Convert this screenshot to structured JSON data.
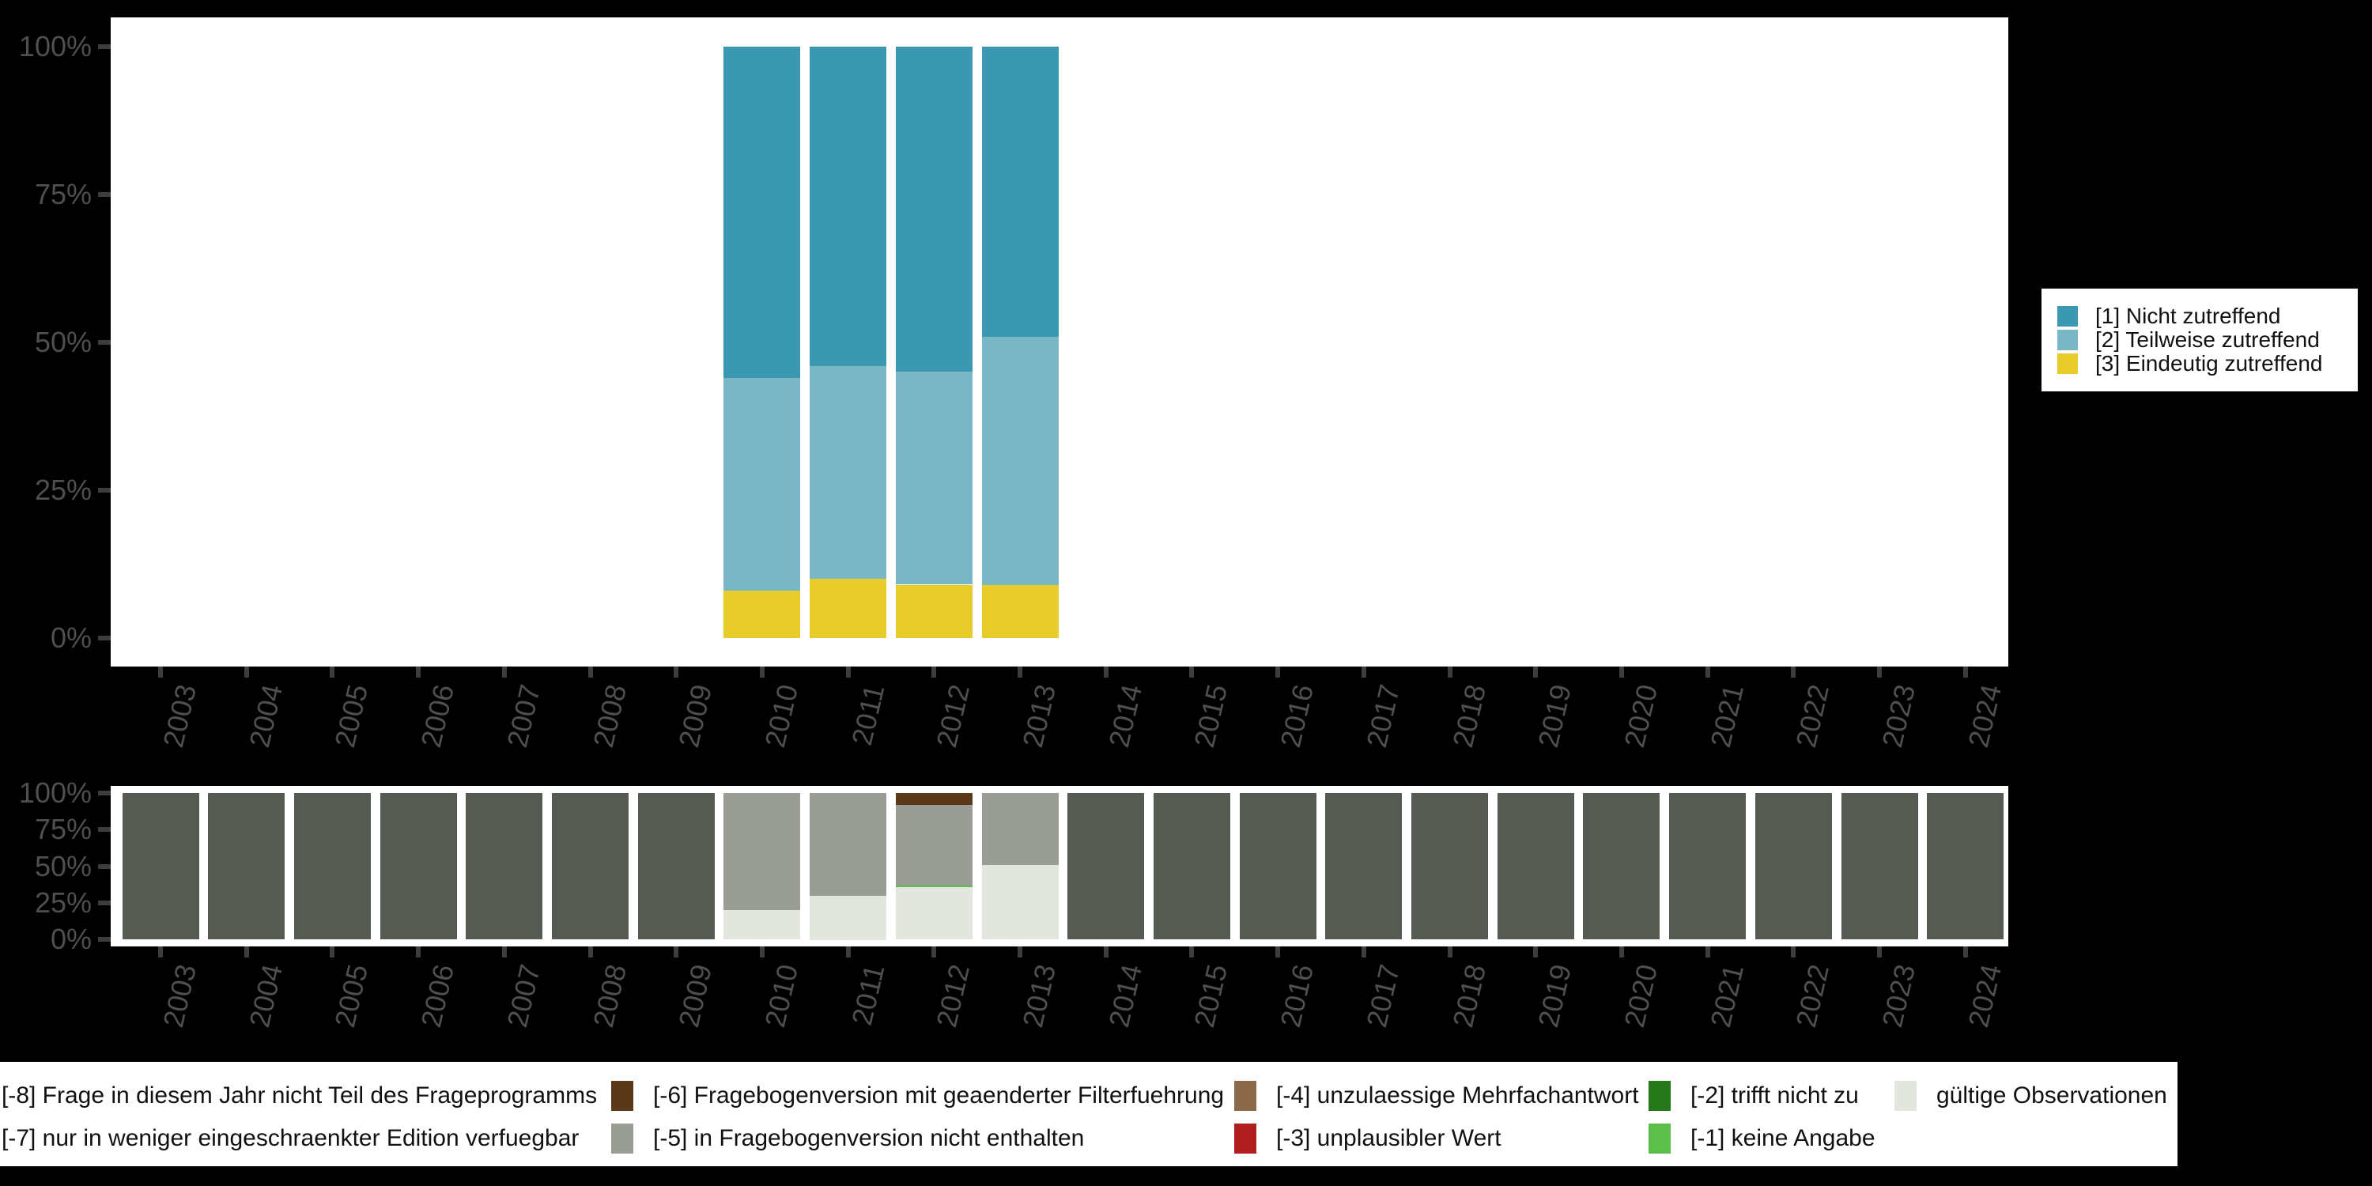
{
  "colors": {
    "background": "#000000",
    "panel": "#ffffff",
    "axis_text": "#4f4f4f",
    "axis_tick": "#3d3d3d",
    "legend_text": "#111111"
  },
  "years": [
    "2003",
    "2004",
    "2005",
    "2006",
    "2007",
    "2008",
    "2009",
    "2010",
    "2011",
    "2012",
    "2013",
    "2014",
    "2015",
    "2016",
    "2017",
    "2018",
    "2019",
    "2020",
    "2021",
    "2022",
    "2023",
    "2024"
  ],
  "y_axis_tick_labels": [
    "100%",
    "75%",
    "50%",
    "25%",
    "0%"
  ],
  "top_legend": {
    "items": [
      {
        "label": "[1] Nicht zutreffend",
        "color": "#3a99b0"
      },
      {
        "label": "[2] Teilweise zutreffend",
        "color": "#79b6c6"
      },
      {
        "label": "[3] Eindeutig zutreffend",
        "color": "#e8cc2b"
      }
    ]
  },
  "bottom_legend": {
    "rows": [
      [
        {
          "label": "[-8] Frage in diesem Jahr nicht Teil des Frageprogramms",
          "color": "#555b53",
          "swatch_clipped": true
        },
        {
          "label": "[-6] Fragebogenversion mit geaenderter Filterfuehrung",
          "color": "#5a3919",
          "swatch_clipped": false
        },
        {
          "label": "[-4] unzulaessige Mehrfachantwort",
          "color": "#8a6a4a",
          "swatch_clipped": false
        },
        {
          "label": "[-2] trifft nicht zu",
          "color": "#26791b",
          "swatch_clipped": false
        },
        {
          "label": "gültige Observationen",
          "color": "#e2e6df",
          "swatch_clipped": false
        }
      ],
      [
        {
          "label": "[-7] nur in weniger eingeschraenkter Edition verfuegbar",
          "color": null,
          "swatch_clipped": true
        },
        {
          "label": "[-5] in Fragebogenversion nicht enthalten",
          "color": "#999d95",
          "swatch_clipped": false
        },
        {
          "label": "[-3] unplausibler Wert",
          "color": "#b01e20",
          "swatch_clipped": false
        },
        {
          "label": "[-1] keine Angabe",
          "color": "#5cbf4a",
          "swatch_clipped": false
        }
      ]
    ]
  },
  "chart_data": [
    {
      "type": "bar",
      "stacked": true,
      "title": "",
      "categories": [
        2003,
        2004,
        2005,
        2006,
        2007,
        2008,
        2009,
        2010,
        2011,
        2012,
        2013,
        2014,
        2015,
        2016,
        2017,
        2018,
        2019,
        2020,
        2021,
        2022,
        2023,
        2024
      ],
      "ylim": [
        0,
        100
      ],
      "y_tick_labels": [
        "0%",
        "25%",
        "50%",
        "75%",
        "100%"
      ],
      "grid": false,
      "legend_position": "right",
      "series_bottom_to_top": [
        {
          "name": "[3] Eindeutig zutreffend",
          "color": "#e8cc2b",
          "values": [
            0,
            0,
            0,
            0,
            0,
            0,
            0,
            8,
            10,
            9,
            9,
            0,
            0,
            0,
            0,
            0,
            0,
            0,
            0,
            0,
            0,
            0
          ]
        },
        {
          "name": "[2] Teilweise zutreffend",
          "color": "#79b6c6",
          "values": [
            0,
            0,
            0,
            0,
            0,
            0,
            0,
            36,
            36,
            36,
            42,
            0,
            0,
            0,
            0,
            0,
            0,
            0,
            0,
            0,
            0,
            0
          ]
        },
        {
          "name": "[1] Nicht zutreffend",
          "color": "#3a99b0",
          "values": [
            0,
            0,
            0,
            0,
            0,
            0,
            0,
            56,
            54,
            55,
            49,
            0,
            0,
            0,
            0,
            0,
            0,
            0,
            0,
            0,
            0,
            0
          ]
        }
      ]
    },
    {
      "type": "bar",
      "stacked": true,
      "title": "",
      "categories": [
        2003,
        2004,
        2005,
        2006,
        2007,
        2008,
        2009,
        2010,
        2011,
        2012,
        2013,
        2014,
        2015,
        2016,
        2017,
        2018,
        2019,
        2020,
        2021,
        2022,
        2023,
        2024
      ],
      "ylim": [
        0,
        100
      ],
      "y_tick_labels": [
        "0%",
        "25%",
        "50%",
        "75%",
        "100%"
      ],
      "grid": false,
      "legend_position": "bottom",
      "series_bottom_to_top": [
        {
          "name": "gültige Observationen",
          "color": "#e2e6df",
          "values": [
            0,
            0,
            0,
            0,
            0,
            0,
            0,
            20,
            30,
            36,
            51,
            0,
            0,
            0,
            0,
            0,
            0,
            0,
            0,
            0,
            0,
            0
          ]
        },
        {
          "name": "[-1] keine Angabe",
          "color": "#5cbf4a",
          "values": [
            0,
            0,
            0,
            0,
            0,
            0,
            0,
            0,
            0,
            1,
            0,
            0,
            0,
            0,
            0,
            0,
            0,
            0,
            0,
            0,
            0,
            0
          ]
        },
        {
          "name": "[-5] in Fragebogenversion nicht enthalten",
          "color": "#999d95",
          "values": [
            0,
            0,
            0,
            0,
            0,
            0,
            0,
            80,
            70,
            55,
            49,
            0,
            0,
            0,
            0,
            0,
            0,
            0,
            0,
            0,
            0,
            0
          ]
        },
        {
          "name": "[-6] Fragebogenversion mit geaenderter Filterfuehrung",
          "color": "#5a3919",
          "values": [
            0,
            0,
            0,
            0,
            0,
            0,
            0,
            0,
            0,
            8,
            0,
            0,
            0,
            0,
            0,
            0,
            0,
            0,
            0,
            0,
            0,
            0
          ]
        },
        {
          "name": "[-8] Frage in diesem Jahr nicht Teil des Frageprogramms",
          "color": "#555b53",
          "values": [
            100,
            100,
            100,
            100,
            100,
            100,
            100,
            0,
            0,
            0,
            0,
            100,
            100,
            100,
            100,
            100,
            100,
            100,
            100,
            100,
            100,
            100
          ]
        }
      ]
    }
  ]
}
